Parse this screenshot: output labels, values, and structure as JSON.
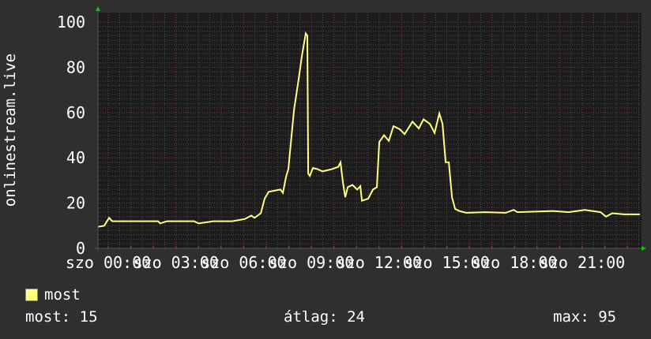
{
  "chart_data": {
    "type": "line",
    "ylabel": "onlinestream.live",
    "xlabel": "",
    "ylim": [
      0,
      100
    ],
    "yticks": [
      "0",
      "20",
      "40",
      "60",
      "80",
      "100"
    ],
    "x_unit": "hours since szo 00:00",
    "xlim": [
      -0.45,
      23.56
    ],
    "xticks": [
      {
        "at": 0,
        "label": "szo 00:00"
      },
      {
        "at": 3,
        "label": "szo 03:00"
      },
      {
        "at": 6,
        "label": "szo 06:00"
      },
      {
        "at": 9,
        "label": "szo 09:00"
      },
      {
        "at": 12,
        "label": "szo 12:00"
      },
      {
        "at": 15,
        "label": "szo 15:00"
      },
      {
        "at": 18,
        "label": "szo 18:00"
      },
      {
        "at": 21,
        "label": "szo 21:00"
      }
    ],
    "grid": true,
    "series": [
      {
        "name": "most",
        "color": "#ffff80",
        "x": [
          -0.45,
          -0.18,
          0.04,
          0.18,
          1.2,
          2.21,
          2.3,
          2.6,
          3.8,
          4.0,
          4.66,
          5.5,
          6.06,
          6.34,
          6.48,
          6.76,
          6.93,
          7.11,
          7.63,
          7.74,
          7.88,
          7.98,
          8.23,
          8.44,
          8.58,
          8.75,
          8.82,
          8.86,
          8.93,
          9.07,
          9.28,
          9.49,
          9.91,
          10.19,
          10.29,
          10.4,
          10.5,
          10.61,
          10.82,
          11.03,
          11.17,
          11.24,
          11.52,
          11.73,
          11.9,
          12.01,
          12.22,
          12.43,
          12.64,
          12.92,
          13.13,
          13.48,
          13.76,
          13.97,
          14.25,
          14.46,
          14.67,
          14.81,
          14.95,
          15.09,
          15.23,
          15.37,
          15.58,
          15.86,
          16.7,
          17.61,
          17.96,
          18.13,
          19.71,
          20.4,
          21.11,
          21.81,
          22.05,
          22.33,
          22.86,
          23.56
        ],
        "y": [
          9.5,
          10,
          13.5,
          12,
          12,
          12,
          11,
          12,
          12,
          11,
          12,
          12,
          13,
          14.5,
          13.5,
          15.5,
          22,
          25,
          26,
          24.5,
          31.7,
          35,
          61,
          75,
          85,
          95,
          94,
          33,
          32,
          35.5,
          35,
          34,
          35,
          36,
          38,
          29,
          22.6,
          27,
          28,
          26,
          27.5,
          21,
          22,
          26,
          27,
          47,
          50,
          47.5,
          54,
          52.6,
          50.5,
          56,
          53,
          57,
          55,
          51,
          59.6,
          55,
          38,
          38,
          22.6,
          17.4,
          16.4,
          15.7,
          16,
          15.7,
          17,
          16,
          16.5,
          16,
          17,
          16,
          14,
          15.5,
          15,
          15
        ]
      }
    ]
  },
  "legend": {
    "label": "most",
    "color": "#ffff80"
  },
  "stats": {
    "now": "most: 15",
    "avg": "átlag: 24",
    "max": "max: 95"
  }
}
